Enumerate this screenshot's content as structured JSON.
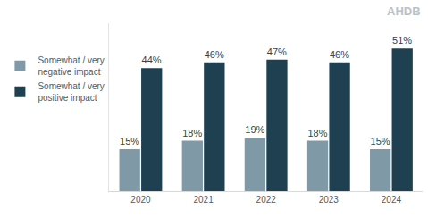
{
  "chart_data": {
    "type": "bar",
    "annotations": [
      "AHDB"
    ],
    "categories": [
      "2020",
      "2021",
      "2022",
      "2023",
      "2024"
    ],
    "series": [
      {
        "name": "Somewhat / very negative impact",
        "color": "#7f99a6",
        "values": [
          15,
          18,
          19,
          18,
          15
        ],
        "value_labels": [
          "15%",
          "18%",
          "19%",
          "18%",
          "15%"
        ]
      },
      {
        "name": "Somewhat / very positive impact",
        "color": "#1e4050",
        "values": [
          44,
          46,
          47,
          46,
          51
        ],
        "value_labels": [
          "44%",
          "46%",
          "47%",
          "46%",
          "51%"
        ]
      }
    ],
    "ylim": [
      0,
      60
    ],
    "yticks": [],
    "grid": false,
    "legend": "left",
    "data_labels": true,
    "tick_labels": "x"
  }
}
